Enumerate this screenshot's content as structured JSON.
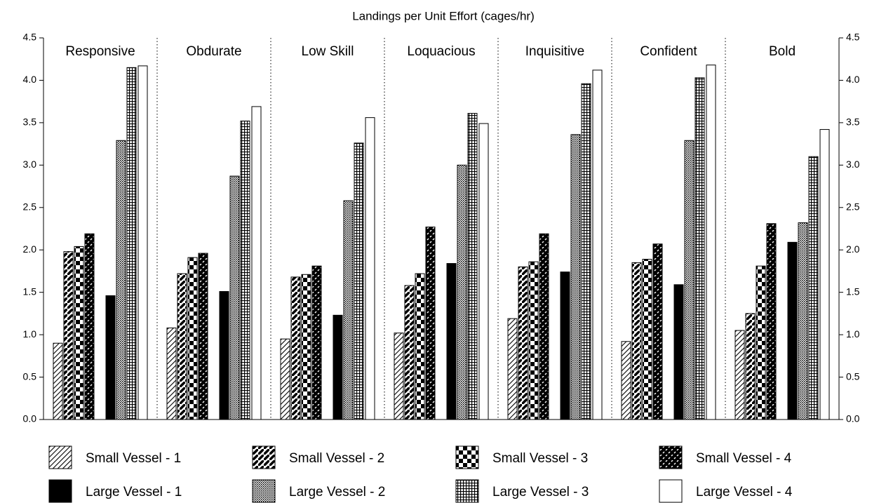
{
  "chart_data": {
    "type": "bar",
    "title": "Landings per Unit Effort (cages/hr)",
    "categories": [
      "Responsive",
      "Obdurate",
      "Low Skill",
      "Loquacious",
      "Inquisitive",
      "Confident",
      "Bold"
    ],
    "series": [
      {
        "name": "Small Vessel - 1",
        "pattern": "sv1",
        "values": [
          0.9,
          1.08,
          0.95,
          1.02,
          1.19,
          0.92,
          1.05
        ]
      },
      {
        "name": "Small Vessel - 2",
        "pattern": "sv2",
        "values": [
          1.98,
          1.72,
          1.68,
          1.58,
          1.8,
          1.85,
          1.25
        ]
      },
      {
        "name": "Small Vessel - 3",
        "pattern": "sv3",
        "values": [
          2.04,
          1.91,
          1.71,
          1.72,
          1.86,
          1.89,
          1.81
        ]
      },
      {
        "name": "Small Vessel - 4",
        "pattern": "sv4",
        "values": [
          2.19,
          1.96,
          1.81,
          2.27,
          2.19,
          2.07,
          2.31
        ]
      },
      {
        "name": "Large Vessel - 1",
        "pattern": "lv1",
        "values": [
          1.46,
          1.51,
          1.23,
          1.84,
          1.74,
          1.59,
          2.09
        ]
      },
      {
        "name": "Large Vessel - 2",
        "pattern": "lv2",
        "values": [
          3.29,
          2.87,
          2.58,
          3.0,
          3.36,
          3.29,
          2.32
        ]
      },
      {
        "name": "Large Vessel - 3",
        "pattern": "lv3",
        "values": [
          4.15,
          3.52,
          3.26,
          3.61,
          3.96,
          4.03,
          3.1
        ]
      },
      {
        "name": "Large Vessel - 4",
        "pattern": "lv4",
        "values": [
          4.17,
          3.69,
          3.56,
          3.49,
          4.12,
          4.18,
          3.42
        ]
      }
    ],
    "ylim": [
      0,
      4.5
    ],
    "yticks": [
      {
        "value": 0,
        "label": "0.0"
      },
      0.5,
      {
        "value": 1,
        "label": "1.0"
      },
      1.5,
      {
        "value": 2,
        "label": "2.0"
      },
      2.5,
      {
        "value": 3,
        "label": "3.0"
      },
      3.5,
      {
        "value": 4,
        "label": "4.0"
      },
      4.5
    ],
    "y2lim": [
      0,
      4.5
    ],
    "y2ticks": [
      {
        "value": 0,
        "label": "0.0"
      },
      0.5,
      {
        "value": 1,
        "label": "1.0"
      },
      1.5,
      {
        "value": 2,
        "label": "2.0"
      },
      2.5,
      {
        "value": 3,
        "label": "3.0"
      },
      3.5,
      {
        "value": 4,
        "label": "4.0"
      },
      4.5
    ],
    "legend": "bottom"
  }
}
